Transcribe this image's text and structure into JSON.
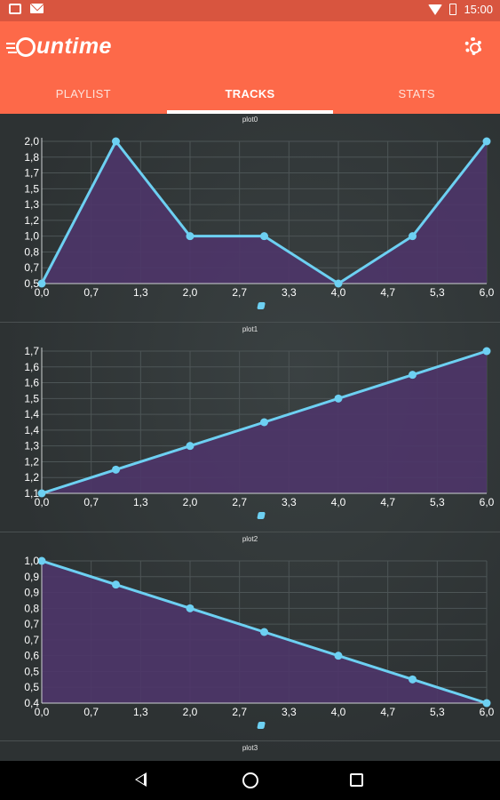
{
  "status_bar": {
    "time": "15:00",
    "icons": [
      "gallery-icon",
      "mail-icon",
      "wifi-icon",
      "battery-icon"
    ]
  },
  "app": {
    "logo_text": "untime",
    "settings_icon": "gear-icon",
    "colors": {
      "appbar": "#fd6949",
      "statusbar": "#d8553f",
      "line": "#6dd0f2",
      "fill": "#4e3569"
    }
  },
  "tabs": [
    {
      "label": "PLAYLIST",
      "active": false
    },
    {
      "label": "TRACKS",
      "active": true
    },
    {
      "label": "STATS",
      "active": false
    }
  ],
  "chart_data": [
    {
      "type": "area",
      "title": "plot0",
      "x": [
        0,
        1,
        2,
        3,
        4,
        5,
        6
      ],
      "values": [
        0.5,
        2.0,
        1.0,
        1.0,
        0.5,
        1.0,
        2.0
      ],
      "xlim": [
        0,
        6
      ],
      "ylim": [
        0.5,
        2.0
      ],
      "x_ticks": [
        "0,0",
        "0,7",
        "1,3",
        "2,0",
        "2,7",
        "3,3",
        "4,0",
        "4,7",
        "5,3",
        "6,0"
      ],
      "y_ticks": [
        "0,5",
        "0,7",
        "0,8",
        "1,0",
        "1,2",
        "1,3",
        "1,5",
        "1,7",
        "1,8",
        "2,0"
      ],
      "grid": true
    },
    {
      "type": "area",
      "title": "plot1",
      "x": [
        0,
        1,
        2,
        3,
        4,
        5,
        6
      ],
      "values": [
        1.1,
        1.2,
        1.3,
        1.4,
        1.5,
        1.6,
        1.7
      ],
      "xlim": [
        0,
        6
      ],
      "ylim": [
        1.1,
        1.7
      ],
      "x_ticks": [
        "0,0",
        "0,7",
        "1,3",
        "2,0",
        "2,7",
        "3,3",
        "4,0",
        "4,7",
        "5,3",
        "6,0"
      ],
      "y_ticks": [
        "1,1",
        "1,2",
        "1,2",
        "1,3",
        "1,4",
        "1,4",
        "1,5",
        "1,6",
        "1,6",
        "1,7"
      ],
      "grid": true
    },
    {
      "type": "area",
      "title": "plot2",
      "x": [
        0,
        1,
        2,
        3,
        4,
        5,
        6
      ],
      "values": [
        1.0,
        0.9,
        0.8,
        0.7,
        0.6,
        0.5,
        0.4
      ],
      "xlim": [
        0,
        6
      ],
      "ylim": [
        0.4,
        1.0
      ],
      "x_ticks": [
        "0,0",
        "0,7",
        "1,3",
        "2,0",
        "2,7",
        "3,3",
        "4,0",
        "4,7",
        "5,3",
        "6,0"
      ],
      "y_ticks": [
        "0,4",
        "0,5",
        "0,5",
        "0,6",
        "0,7",
        "0,7",
        "0,8",
        "0,9",
        "0,9",
        "1,0"
      ],
      "grid": true
    }
  ],
  "next_plot_title": "plot3"
}
